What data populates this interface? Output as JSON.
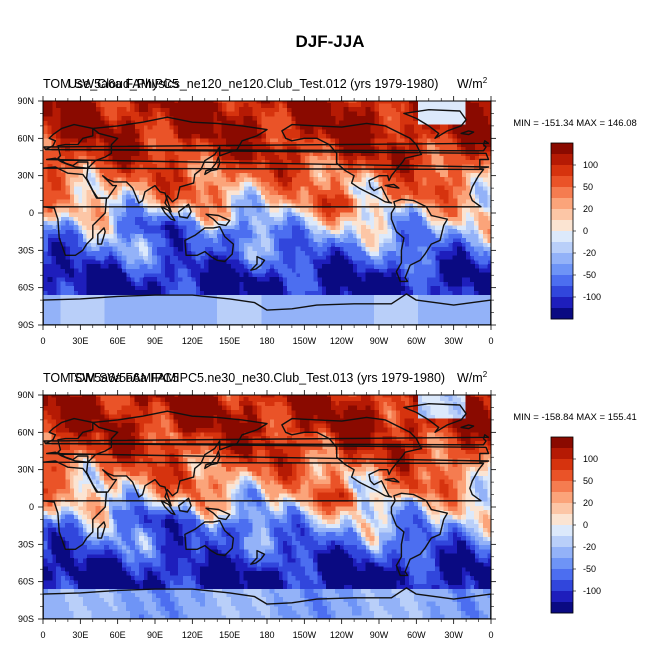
{
  "figure": {
    "main_title": "DJF-JJA"
  },
  "colors": {
    "levels_palette": [
      "#0a0a82",
      "#1e1ebc",
      "#3146dc",
      "#4c6ef0",
      "#6e94f6",
      "#93b2f8",
      "#b9cff9",
      "#dce9fb",
      "#fbe4d2",
      "#fcc6a6",
      "#fba47a",
      "#f57c50",
      "#ea5328",
      "#d6330e",
      "#b51a04",
      "#8a0a00"
    ],
    "coast": "#111111"
  },
  "panels": [
    {
      "left_title": "TOM SW5a6a FAMIPC5",
      "overlay_title": "Use_Cloud_Physics_ne120_ne120.Club_Test.012 (yrs 1979-1980)",
      "units_base": "W/m",
      "units_exp": "2",
      "minmax": "MIN = -151.34 MAX = 146.08"
    },
    {
      "left_title": "TOM SW5a6a FAMIPC5",
      "overlay_title": "TOM SW5a6a FAMIPC5.ne30_ne30.Club_Test.013 (yrs 1979-1980)",
      "units_base": "W/m",
      "units_exp": "2",
      "minmax": "MIN = -158.84 MAX = 155.41"
    }
  ],
  "chart_data": [
    {
      "type": "heatmap",
      "title": "TOM SW5a6a FAMIPC5 Use_Cloud_Physics_ne120_ne120.Club_Test.012 (yrs 1979-1980)",
      "variable": "DJF-JJA",
      "units": "W/m2",
      "x_ticks": [
        "0",
        "30E",
        "60E",
        "90E",
        "120E",
        "150E",
        "180",
        "150W",
        "120W",
        "90W",
        "60W",
        "30W",
        "0"
      ],
      "x_tick_values": [
        0,
        30,
        60,
        90,
        120,
        150,
        180,
        210,
        240,
        270,
        300,
        330,
        360
      ],
      "y_ticks": [
        "90S",
        "60S",
        "30S",
        "0",
        "30N",
        "60N",
        "90N"
      ],
      "y_tick_values": [
        -90,
        -60,
        -30,
        0,
        30,
        60,
        90
      ],
      "xlim": [
        0,
        360
      ],
      "ylim": [
        -90,
        90
      ],
      "colorbar_labels": [
        "100",
        "50",
        "20",
        "0",
        "-20",
        "-50",
        "-100"
      ],
      "colorbar_label_values": [
        100,
        50,
        20,
        0,
        -20,
        -50,
        -100
      ],
      "color_levels": [
        -150,
        -120,
        -100,
        -80,
        -50,
        -40,
        -20,
        -10,
        0,
        10,
        20,
        40,
        50,
        80,
        100,
        120,
        150
      ],
      "min": -151.34,
      "max": 146.08
    },
    {
      "type": "heatmap",
      "title": "TOM SW5a6a FAMIPC5.ne30_ne30.Club_Test.013 (yrs 1979-1980)",
      "variable": "DJF-JJA",
      "units": "W/m2",
      "x_ticks": [
        "0",
        "30E",
        "60E",
        "90E",
        "120E",
        "150E",
        "180",
        "150W",
        "120W",
        "90W",
        "60W",
        "30W",
        "0"
      ],
      "x_tick_values": [
        0,
        30,
        60,
        90,
        120,
        150,
        180,
        210,
        240,
        270,
        300,
        330,
        360
      ],
      "y_ticks": [
        "90S",
        "60S",
        "30S",
        "0",
        "30N",
        "60N",
        "90N"
      ],
      "y_tick_values": [
        -90,
        -60,
        -30,
        0,
        30,
        60,
        90
      ],
      "xlim": [
        0,
        360
      ],
      "ylim": [
        -90,
        90
      ],
      "colorbar_labels": [
        "100",
        "50",
        "20",
        "0",
        "-20",
        "-50",
        "-100"
      ],
      "colorbar_label_values": [
        100,
        50,
        20,
        0,
        -20,
        -50,
        -100
      ],
      "color_levels": [
        -150,
        -120,
        -100,
        -80,
        -50,
        -40,
        -20,
        -10,
        0,
        10,
        20,
        40,
        50,
        80,
        100,
        120,
        150
      ],
      "min": -158.84,
      "max": 155.41
    }
  ]
}
